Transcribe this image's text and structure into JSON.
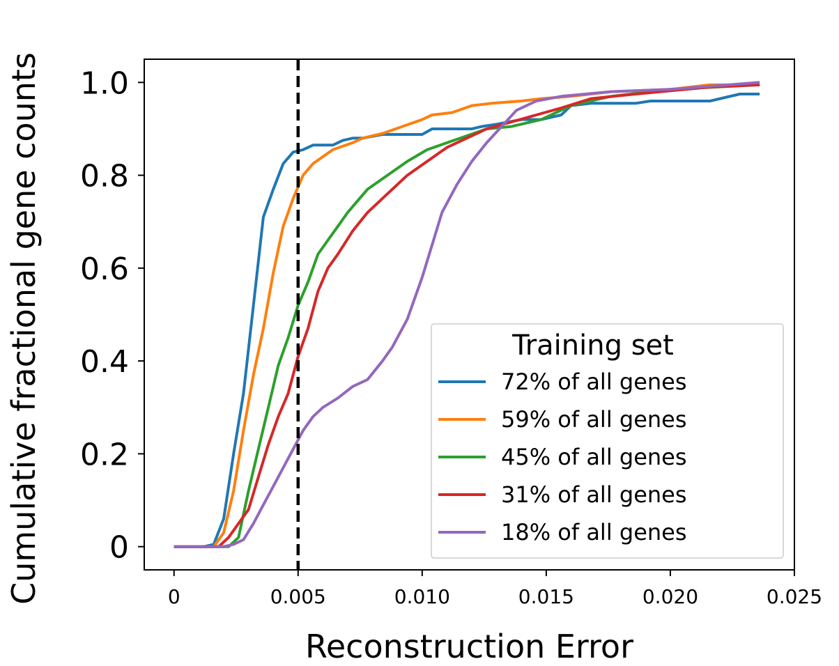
{
  "chart_data": {
    "type": "line",
    "title": "",
    "xlabel": "Reconstruction Error",
    "ylabel": "Cumulative fractional gene counts",
    "xlim": [
      -0.0012,
      0.025
    ],
    "ylim": [
      -0.05,
      1.05
    ],
    "x_ticks": [
      {
        "value": 0,
        "label": "0"
      },
      {
        "value": 0.005,
        "label": "0.005"
      },
      {
        "value": 0.01,
        "label": "0.010"
      },
      {
        "value": 0.015,
        "label": "0.015"
      },
      {
        "value": 0.02,
        "label": "0.020"
      },
      {
        "value": 0.025,
        "label": "0.025"
      }
    ],
    "y_ticks": [
      {
        "value": 0,
        "label": "0"
      },
      {
        "value": 0.2,
        "label": "0.2"
      },
      {
        "value": 0.4,
        "label": "0.4"
      },
      {
        "value": 0.6,
        "label": "0.6"
      },
      {
        "value": 0.8,
        "label": "0.8"
      },
      {
        "value": 1.0,
        "label": "1.0"
      }
    ],
    "grid": false,
    "reference_line": {
      "x": 0.005,
      "style": "dashed",
      "color": "#000000"
    },
    "legend": {
      "title": "Training set",
      "placement": "lower-right"
    },
    "series": [
      {
        "name": "72% of all genes",
        "color": "#1f77b4",
        "points": [
          [
            0,
            0
          ],
          [
            0.0012,
            0
          ],
          [
            0.0016,
            0.005
          ],
          [
            0.002,
            0.06
          ],
          [
            0.0024,
            0.2
          ],
          [
            0.0028,
            0.33
          ],
          [
            0.0032,
            0.52
          ],
          [
            0.0036,
            0.71
          ],
          [
            0.004,
            0.77
          ],
          [
            0.0044,
            0.825
          ],
          [
            0.0048,
            0.85
          ],
          [
            0.0052,
            0.855
          ],
          [
            0.0056,
            0.865
          ],
          [
            0.0064,
            0.865
          ],
          [
            0.0068,
            0.875
          ],
          [
            0.0072,
            0.88
          ],
          [
            0.0076,
            0.88
          ],
          [
            0.0084,
            0.888
          ],
          [
            0.01,
            0.888
          ],
          [
            0.0104,
            0.9
          ],
          [
            0.012,
            0.9
          ],
          [
            0.0124,
            0.905
          ],
          [
            0.013,
            0.91
          ],
          [
            0.014,
            0.92
          ],
          [
            0.0148,
            0.92
          ],
          [
            0.0156,
            0.93
          ],
          [
            0.016,
            0.95
          ],
          [
            0.0168,
            0.955
          ],
          [
            0.0186,
            0.955
          ],
          [
            0.0192,
            0.96
          ],
          [
            0.0216,
            0.96
          ],
          [
            0.0228,
            0.975
          ],
          [
            0.0236,
            0.975
          ]
        ]
      },
      {
        "name": "59% of all genes",
        "color": "#ff7f0e",
        "points": [
          [
            0,
            0
          ],
          [
            0.0016,
            0
          ],
          [
            0.002,
            0.03
          ],
          [
            0.0024,
            0.12
          ],
          [
            0.0028,
            0.25
          ],
          [
            0.0032,
            0.37
          ],
          [
            0.0036,
            0.47
          ],
          [
            0.004,
            0.59
          ],
          [
            0.0044,
            0.69
          ],
          [
            0.0048,
            0.75
          ],
          [
            0.0052,
            0.8
          ],
          [
            0.0056,
            0.825
          ],
          [
            0.0064,
            0.855
          ],
          [
            0.0072,
            0.87
          ],
          [
            0.0076,
            0.88
          ],
          [
            0.0084,
            0.89
          ],
          [
            0.0092,
            0.905
          ],
          [
            0.01,
            0.92
          ],
          [
            0.0104,
            0.93
          ],
          [
            0.0112,
            0.935
          ],
          [
            0.012,
            0.95
          ],
          [
            0.0128,
            0.955
          ],
          [
            0.014,
            0.96
          ],
          [
            0.0148,
            0.965
          ],
          [
            0.016,
            0.97
          ],
          [
            0.0176,
            0.98
          ],
          [
            0.02,
            0.985
          ],
          [
            0.0216,
            0.995
          ],
          [
            0.0236,
            0.995
          ]
        ]
      },
      {
        "name": "45% of all genes",
        "color": "#2ca02c",
        "points": [
          [
            0,
            0
          ],
          [
            0.0022,
            0
          ],
          [
            0.0026,
            0.02
          ],
          [
            0.003,
            0.12
          ],
          [
            0.0034,
            0.21
          ],
          [
            0.0038,
            0.3
          ],
          [
            0.0042,
            0.39
          ],
          [
            0.0046,
            0.45
          ],
          [
            0.005,
            0.52
          ],
          [
            0.0054,
            0.57
          ],
          [
            0.0058,
            0.63
          ],
          [
            0.0062,
            0.66
          ],
          [
            0.0066,
            0.69
          ],
          [
            0.007,
            0.72
          ],
          [
            0.0078,
            0.77
          ],
          [
            0.0086,
            0.8
          ],
          [
            0.0094,
            0.83
          ],
          [
            0.0102,
            0.855
          ],
          [
            0.011,
            0.87
          ],
          [
            0.0118,
            0.885
          ],
          [
            0.0126,
            0.9
          ],
          [
            0.0136,
            0.905
          ],
          [
            0.0148,
            0.92
          ],
          [
            0.016,
            0.95
          ],
          [
            0.0176,
            0.97
          ],
          [
            0.02,
            0.985
          ],
          [
            0.0236,
            0.995
          ]
        ]
      },
      {
        "name": "31% of all genes",
        "color": "#d62728",
        "points": [
          [
            0,
            0
          ],
          [
            0.0018,
            0
          ],
          [
            0.0022,
            0.02
          ],
          [
            0.0026,
            0.05
          ],
          [
            0.003,
            0.08
          ],
          [
            0.0034,
            0.15
          ],
          [
            0.0038,
            0.22
          ],
          [
            0.0042,
            0.28
          ],
          [
            0.0046,
            0.33
          ],
          [
            0.005,
            0.41
          ],
          [
            0.0054,
            0.47
          ],
          [
            0.0058,
            0.55
          ],
          [
            0.0062,
            0.6
          ],
          [
            0.0066,
            0.63
          ],
          [
            0.0072,
            0.68
          ],
          [
            0.0078,
            0.72
          ],
          [
            0.0086,
            0.76
          ],
          [
            0.0094,
            0.8
          ],
          [
            0.0102,
            0.83
          ],
          [
            0.011,
            0.86
          ],
          [
            0.0118,
            0.88
          ],
          [
            0.0126,
            0.9
          ],
          [
            0.0136,
            0.915
          ],
          [
            0.0146,
            0.93
          ],
          [
            0.0156,
            0.945
          ],
          [
            0.0168,
            0.965
          ],
          [
            0.0186,
            0.975
          ],
          [
            0.0216,
            0.99
          ],
          [
            0.0236,
            0.995
          ]
        ]
      },
      {
        "name": "18% of all genes",
        "color": "#9467bd",
        "points": [
          [
            0,
            0
          ],
          [
            0.002,
            0
          ],
          [
            0.0024,
            0.005
          ],
          [
            0.0028,
            0.015
          ],
          [
            0.0032,
            0.05
          ],
          [
            0.0036,
            0.09
          ],
          [
            0.004,
            0.13
          ],
          [
            0.0044,
            0.17
          ],
          [
            0.0048,
            0.21
          ],
          [
            0.0052,
            0.25
          ],
          [
            0.0056,
            0.28
          ],
          [
            0.006,
            0.3
          ],
          [
            0.0066,
            0.32
          ],
          [
            0.0072,
            0.345
          ],
          [
            0.0078,
            0.36
          ],
          [
            0.0084,
            0.4
          ],
          [
            0.0088,
            0.43
          ],
          [
            0.0094,
            0.49
          ],
          [
            0.01,
            0.58
          ],
          [
            0.0104,
            0.65
          ],
          [
            0.0108,
            0.72
          ],
          [
            0.0114,
            0.78
          ],
          [
            0.012,
            0.83
          ],
          [
            0.0126,
            0.87
          ],
          [
            0.0132,
            0.905
          ],
          [
            0.0138,
            0.94
          ],
          [
            0.0146,
            0.96
          ],
          [
            0.0156,
            0.97
          ],
          [
            0.0176,
            0.98
          ],
          [
            0.02,
            0.985
          ],
          [
            0.0236,
            1.0
          ]
        ]
      }
    ]
  }
}
